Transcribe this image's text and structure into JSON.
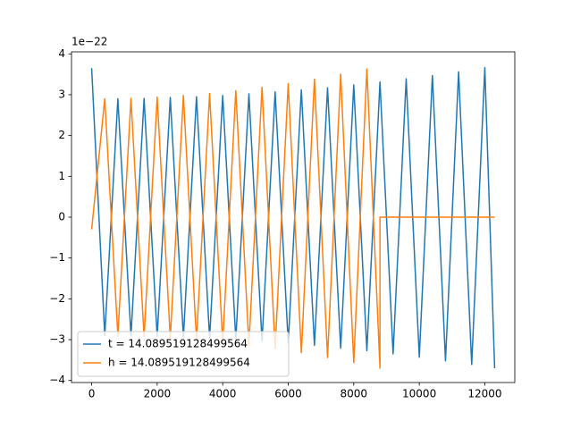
{
  "chart_data": {
    "type": "line",
    "offset_label": "1e−22",
    "xlim": [
      -615,
      12915
    ],
    "ylim": [
      -4.05,
      4.05
    ],
    "xticks": [
      0,
      2000,
      4000,
      6000,
      8000,
      10000,
      12000
    ],
    "yticks": [
      {
        "value": -4,
        "label": "−4"
      },
      {
        "value": -3,
        "label": "−3"
      },
      {
        "value": -2,
        "label": "−2"
      },
      {
        "value": -1,
        "label": "−1"
      },
      0,
      1,
      2,
      3,
      4
    ],
    "legend": "lower left",
    "series": [
      {
        "name": "t = 14.089519128499564",
        "color": "#1f77b4",
        "x": [
          0,
          400,
          800,
          1200,
          1600,
          2000,
          2400,
          2800,
          3200,
          3600,
          4000,
          4400,
          4800,
          5200,
          5600,
          6000,
          6400,
          6800,
          7200,
          7600,
          8000,
          8400,
          8800,
          9200,
          9600,
          10000,
          10400,
          10800,
          11200,
          11600,
          12000,
          12300
        ],
        "values": [
          3.65,
          -2.9,
          2.9,
          -2.91,
          2.91,
          -2.92,
          2.93,
          -2.94,
          2.95,
          -2.97,
          2.98,
          -3.0,
          3.02,
          -3.04,
          3.07,
          -3.09,
          3.12,
          -3.14,
          3.17,
          -3.21,
          3.24,
          -3.27,
          3.31,
          -3.35,
          3.39,
          -3.43,
          3.47,
          -3.52,
          3.56,
          -3.61,
          3.66,
          -3.7
        ]
      },
      {
        "name": "h = 14.089519128499564",
        "color": "#ff7f0e",
        "x": [
          0,
          400,
          800,
          1200,
          1600,
          2000,
          2400,
          2800,
          3200,
          3600,
          4000,
          4400,
          4800,
          5200,
          5600,
          6000,
          6400,
          6800,
          7200,
          7600,
          8000,
          8400,
          8800,
          8800,
          12300
        ],
        "values": [
          -0.3,
          2.9,
          -2.91,
          2.91,
          -2.93,
          2.94,
          -2.96,
          2.98,
          -3.01,
          3.03,
          -3.07,
          3.1,
          -3.14,
          3.18,
          -3.22,
          3.27,
          -3.32,
          3.38,
          -3.44,
          3.5,
          -3.56,
          3.63,
          -3.7,
          0,
          0
        ]
      }
    ]
  }
}
